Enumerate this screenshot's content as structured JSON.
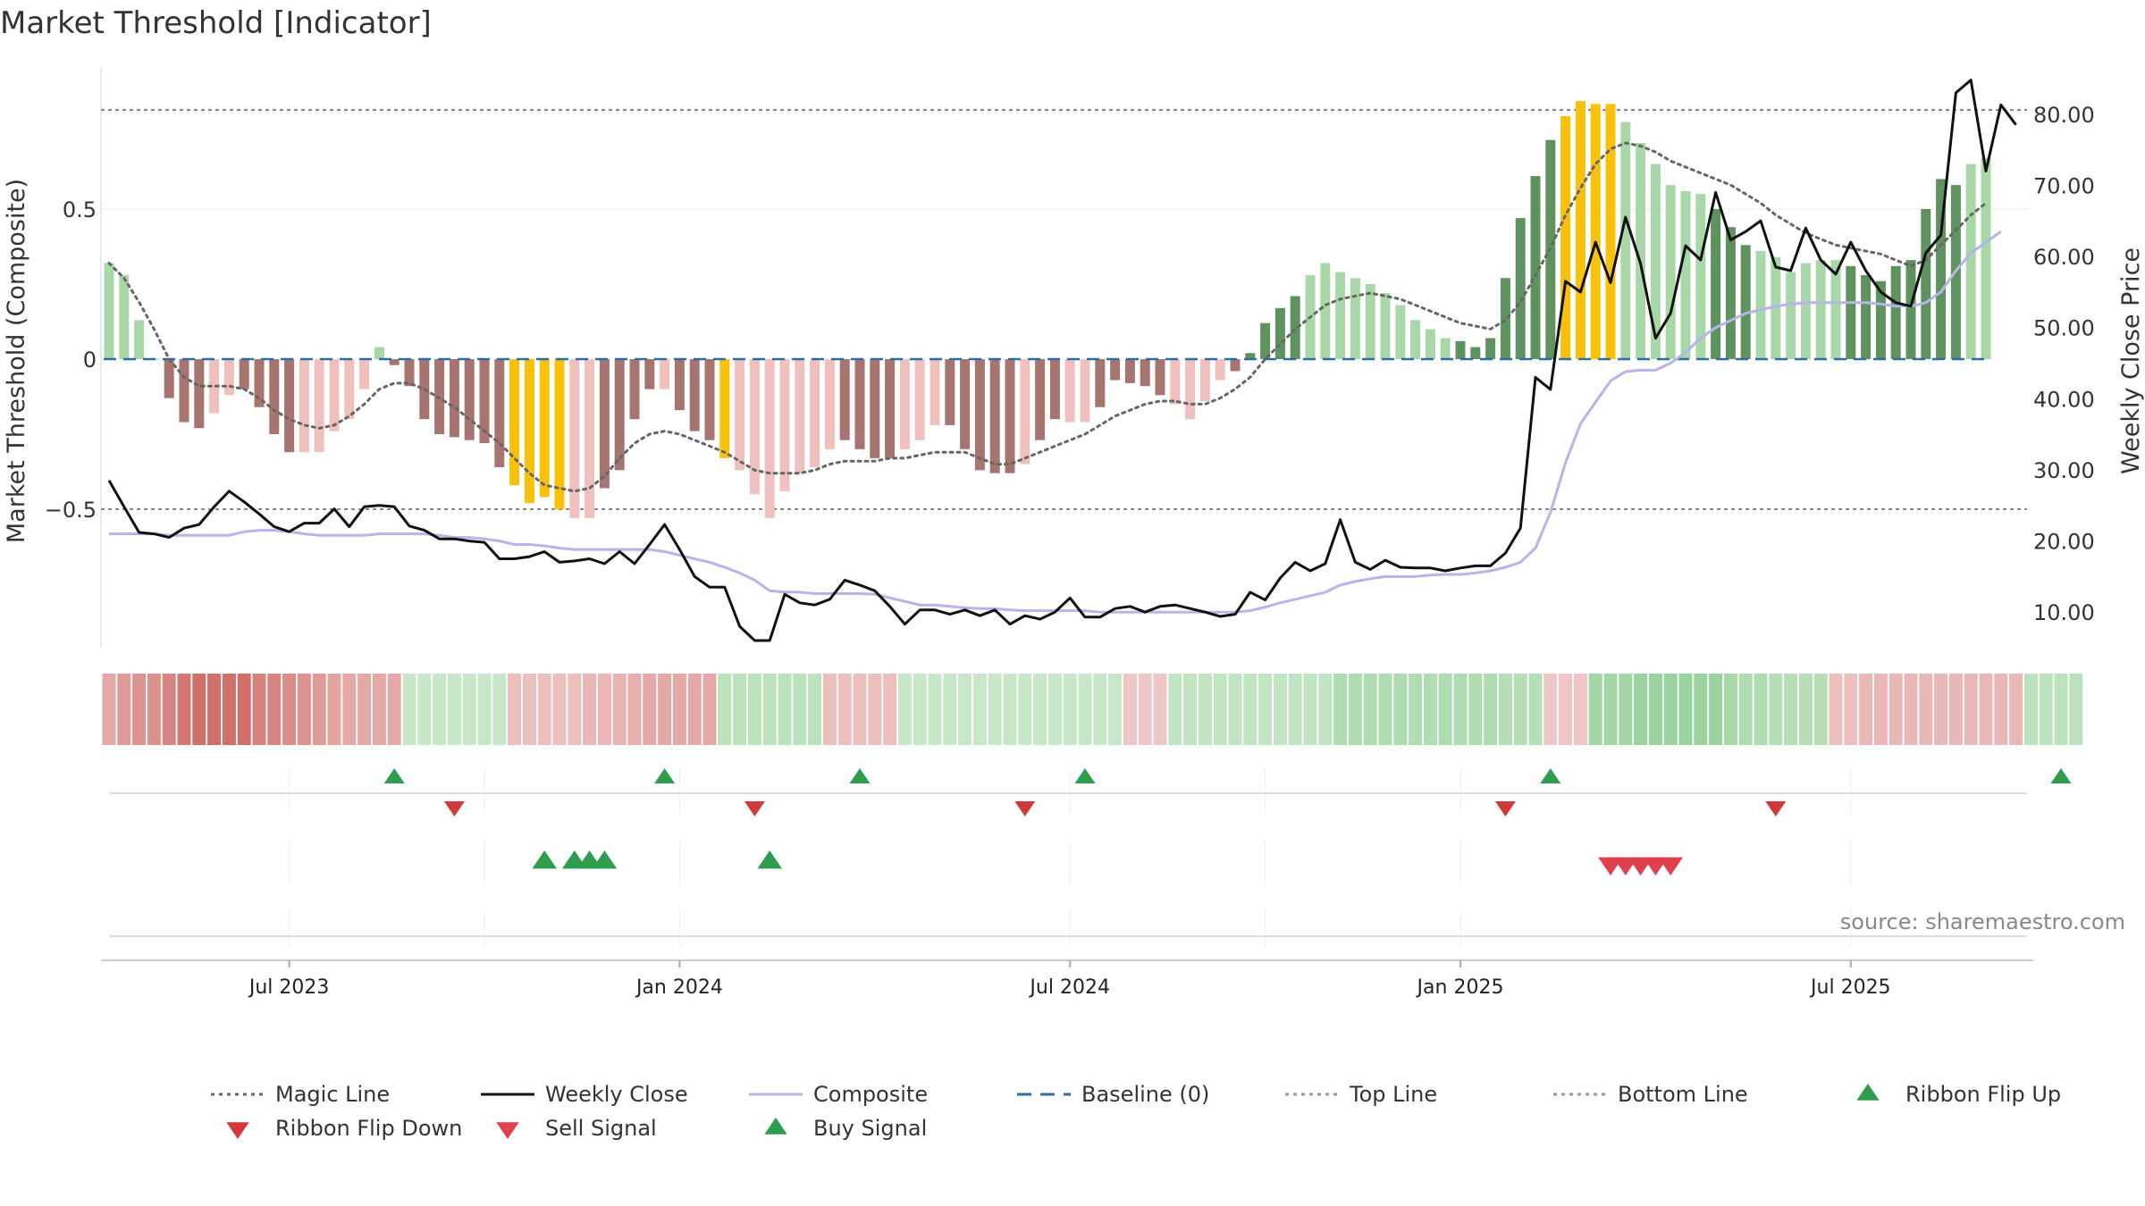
{
  "chart_data": {
    "type": "bar",
    "title": "Market Threshold [Indicator]",
    "ylabel_left": "Market Threshold (Composite)",
    "ylabel_right": "Weekly Close Price",
    "source": "source: sharemaestro.com",
    "ylim_left": [
      -0.95,
      0.95
    ],
    "ylim_right": [
      5,
      86
    ],
    "left_ticks": [
      {
        "v": 0.5,
        "label": "0.5"
      },
      {
        "v": 0,
        "label": "0"
      },
      {
        "v": -0.5,
        "label": "−0.5"
      }
    ],
    "right_ticks": [
      {
        "v": 80,
        "label": "80.00"
      },
      {
        "v": 70,
        "label": "70.00"
      },
      {
        "v": 60,
        "label": "60.00"
      },
      {
        "v": 50,
        "label": "50.00"
      },
      {
        "v": 40,
        "label": "40.00"
      },
      {
        "v": 30,
        "label": "30.00"
      },
      {
        "v": 20,
        "label": "20.00"
      },
      {
        "v": 10,
        "label": "10.00"
      }
    ],
    "x_ticks": [
      {
        "i": 12,
        "label": "Jul 2023"
      },
      {
        "i": 38,
        "label": "Jan 2024"
      },
      {
        "i": 64,
        "label": "Jul 2024"
      },
      {
        "i": 90,
        "label": "Jan 2025"
      },
      {
        "i": 116,
        "label": "Jul 2025"
      }
    ],
    "top_line": 0.83,
    "bottom_line": -0.5,
    "baseline": 0,
    "colors": {
      "strong_pos": "#5e9360",
      "weak_pos": "#a8d8a8",
      "strong_neg": "#a67570",
      "weak_neg": "#f0c0bc",
      "extreme": "#f7c10c",
      "weekly_close": "#111111",
      "composite": "#b8b3e8",
      "magic": "#666666",
      "baseline": "#2f6e9e",
      "threshold": "#777777",
      "buy": "#2e9e4e",
      "sell": "#d23a3a"
    },
    "composite_values": [
      0.32,
      0.28,
      0.13,
      0.0,
      -0.13,
      -0.21,
      -0.23,
      -0.18,
      -0.12,
      -0.1,
      -0.16,
      -0.25,
      -0.31,
      -0.31,
      -0.31,
      -0.24,
      -0.2,
      -0.1,
      0.04,
      -0.02,
      -0.09,
      -0.2,
      -0.25,
      -0.26,
      -0.27,
      -0.28,
      -0.36,
      -0.42,
      -0.48,
      -0.46,
      -0.5,
      -0.53,
      -0.53,
      -0.43,
      -0.37,
      -0.2,
      -0.1,
      -0.1,
      -0.17,
      -0.24,
      -0.27,
      -0.33,
      -0.37,
      -0.45,
      -0.53,
      -0.44,
      -0.38,
      -0.36,
      -0.3,
      -0.27,
      -0.3,
      -0.33,
      -0.33,
      -0.3,
      -0.27,
      -0.22,
      -0.22,
      -0.3,
      -0.37,
      -0.38,
      -0.38,
      -0.35,
      -0.27,
      -0.2,
      -0.21,
      -0.21,
      -0.16,
      -0.07,
      -0.08,
      -0.09,
      -0.12,
      -0.15,
      -0.2,
      -0.14,
      -0.07,
      -0.04,
      0.02,
      0.12,
      0.17,
      0.21,
      0.28,
      0.32,
      0.29,
      0.27,
      0.25,
      0.22,
      0.18,
      0.13,
      0.1,
      0.07,
      0.06,
      0.04,
      0.07,
      0.27,
      0.47,
      0.61,
      0.73,
      0.81,
      0.86,
      0.85,
      0.85,
      0.79,
      0.72,
      0.65,
      0.58,
      0.56,
      0.55,
      0.5,
      0.44,
      0.38,
      0.36,
      0.34,
      0.29,
      0.32,
      0.33,
      0.33,
      0.31,
      0.28,
      0.26,
      0.31,
      0.33,
      0.5,
      0.6,
      0.58,
      0.65,
      0.67
    ],
    "color_codes": "WWWWNNNWWNNNNWWWWWWNNNNNNNNYYYYWWNNNNWNNNYWWWWWWWNNNNWWWNNNNNWNNWWNNNNNWWWWSSSSSWWWWWWWWWWSSSSSSSYYYYWWWWWWSSSWWWWWWSSSSSSSS",
    "weekly_close": [
      28.5,
      24.8,
      21.2,
      21.0,
      20.5,
      21.8,
      22.3,
      24.8,
      27.0,
      25.5,
      23.8,
      22.0,
      21.3,
      22.5,
      22.5,
      24.5,
      22.0,
      24.8,
      25.0,
      24.8,
      22.1,
      21.5,
      20.3,
      20.3,
      20.0,
      19.8,
      17.5,
      17.5,
      17.8,
      18.5,
      17.0,
      17.2,
      17.5,
      16.8,
      18.5,
      16.8,
      19.5,
      22.3,
      18.8,
      15.0,
      13.5,
      13.5,
      8.0,
      6.0,
      6.0,
      12.5,
      11.3,
      11.0,
      11.8,
      14.5,
      13.8,
      13.0,
      10.8,
      8.3,
      10.3,
      10.3,
      9.7,
      10.3,
      9.5,
      10.3,
      8.3,
      9.5,
      9.0,
      10.0,
      12.0,
      9.3,
      9.3,
      10.5,
      10.8,
      10.0,
      10.8,
      11.0,
      10.5,
      10.0,
      9.4,
      9.7,
      12.8,
      11.7,
      14.8,
      17.0,
      15.8,
      16.8,
      23.0,
      17.0,
      16.0,
      17.3,
      16.3,
      16.2,
      16.2,
      15.8,
      16.2,
      16.5,
      16.5,
      18.3,
      21.8,
      43.0,
      41.3,
      56.5,
      55.0,
      62.0,
      56.3,
      65.5,
      59.0,
      48.5,
      52.0,
      61.5,
      59.5,
      69.0,
      62.3,
      63.5,
      65.0,
      58.5,
      58.0,
      64.0,
      59.5,
      57.5,
      62.0,
      58.0,
      55.0,
      53.5,
      53.0,
      60.5,
      63.0,
      83.0,
      84.8,
      72.0,
      81.3,
      78.5
    ],
    "composite_line": [
      21.0,
      21.0,
      21.0,
      21.0,
      20.8,
      20.8,
      20.8,
      20.8,
      20.8,
      21.3,
      21.5,
      21.5,
      21.3,
      21.0,
      20.8,
      20.8,
      20.8,
      20.8,
      21.0,
      21.0,
      21.0,
      21.0,
      20.8,
      20.5,
      20.5,
      20.3,
      20.0,
      19.5,
      19.5,
      19.3,
      19.0,
      18.8,
      18.8,
      18.8,
      18.8,
      18.8,
      18.8,
      18.5,
      18.0,
      17.5,
      17.0,
      16.3,
      15.5,
      14.5,
      13.0,
      12.8,
      12.8,
      12.6,
      12.6,
      12.6,
      12.6,
      12.5,
      12.0,
      11.5,
      11.0,
      11.0,
      10.8,
      10.6,
      10.5,
      10.5,
      10.3,
      10.2,
      10.2,
      10.2,
      10.2,
      10.2,
      10.0,
      10.0,
      10.0,
      10.0,
      10.0,
      10.0,
      10.0,
      10.0,
      10.0,
      10.0,
      10.2,
      10.7,
      11.3,
      11.8,
      12.3,
      12.8,
      13.8,
      14.3,
      14.7,
      15.0,
      15.0,
      15.0,
      15.2,
      15.3,
      15.3,
      15.5,
      15.8,
      16.3,
      17.0,
      19.0,
      24.0,
      31.0,
      36.5,
      39.5,
      42.5,
      43.8,
      44.0,
      44.0,
      45.0,
      46.5,
      48.5,
      50.0,
      51.0,
      52.0,
      52.5,
      53.0,
      53.3,
      53.5,
      53.5,
      53.5,
      53.5,
      53.5,
      53.3,
      53.0,
      53.0,
      53.5,
      55.0,
      58.0,
      60.5,
      62.0,
      63.5
    ],
    "magic_line": [
      0.32,
      0.27,
      0.19,
      0.1,
      0.0,
      -0.06,
      -0.09,
      -0.09,
      -0.09,
      -0.1,
      -0.13,
      -0.17,
      -0.2,
      -0.22,
      -0.23,
      -0.22,
      -0.19,
      -0.15,
      -0.1,
      -0.08,
      -0.08,
      -0.1,
      -0.13,
      -0.16,
      -0.2,
      -0.24,
      -0.28,
      -0.33,
      -0.38,
      -0.42,
      -0.43,
      -0.44,
      -0.43,
      -0.39,
      -0.33,
      -0.28,
      -0.25,
      -0.24,
      -0.25,
      -0.27,
      -0.29,
      -0.31,
      -0.34,
      -0.37,
      -0.38,
      -0.38,
      -0.38,
      -0.37,
      -0.35,
      -0.34,
      -0.34,
      -0.34,
      -0.33,
      -0.33,
      -0.32,
      -0.31,
      -0.31,
      -0.31,
      -0.33,
      -0.35,
      -0.35,
      -0.33,
      -0.31,
      -0.29,
      -0.27,
      -0.25,
      -0.22,
      -0.19,
      -0.17,
      -0.15,
      -0.14,
      -0.14,
      -0.15,
      -0.15,
      -0.13,
      -0.1,
      -0.06,
      0.0,
      0.05,
      0.1,
      0.14,
      0.18,
      0.2,
      0.21,
      0.22,
      0.21,
      0.2,
      0.18,
      0.16,
      0.14,
      0.12,
      0.11,
      0.1,
      0.13,
      0.19,
      0.28,
      0.37,
      0.48,
      0.57,
      0.65,
      0.7,
      0.72,
      0.71,
      0.69,
      0.66,
      0.64,
      0.62,
      0.6,
      0.58,
      0.55,
      0.52,
      0.48,
      0.45,
      0.42,
      0.4,
      0.38,
      0.37,
      0.36,
      0.35,
      0.33,
      0.31,
      0.33,
      0.38,
      0.43,
      0.48,
      0.52
    ],
    "ribbon": [
      -0.45,
      -0.55,
      -0.6,
      -0.62,
      -0.7,
      -0.8,
      -0.85,
      -0.85,
      -0.85,
      -0.85,
      -0.72,
      -0.7,
      -0.65,
      -0.6,
      -0.55,
      -0.48,
      -0.45,
      -0.45,
      -0.45,
      -0.45,
      0.3,
      0.3,
      0.3,
      0.3,
      0.3,
      0.3,
      0.3,
      -0.3,
      -0.3,
      -0.3,
      -0.3,
      -0.3,
      -0.35,
      -0.35,
      -0.38,
      -0.4,
      -0.45,
      -0.45,
      -0.45,
      -0.45,
      -0.45,
      0.4,
      0.4,
      0.4,
      0.4,
      0.4,
      0.4,
      0.4,
      -0.3,
      -0.3,
      -0.3,
      -0.3,
      -0.3,
      0.3,
      0.3,
      0.3,
      0.3,
      0.3,
      0.3,
      0.3,
      0.3,
      0.3,
      0.3,
      0.3,
      0.3,
      0.3,
      0.3,
      0.3,
      -0.25,
      -0.25,
      -0.25,
      0.35,
      0.35,
      0.35,
      0.35,
      0.35,
      0.35,
      0.35,
      0.35,
      0.35,
      0.35,
      0.35,
      0.5,
      0.5,
      0.5,
      0.5,
      0.5,
      0.5,
      0.5,
      0.5,
      0.5,
      0.5,
      0.5,
      0.45,
      0.45,
      0.45,
      -0.25,
      -0.25,
      -0.25,
      0.6,
      0.6,
      0.6,
      0.65,
      0.65,
      0.65,
      0.65,
      0.65,
      0.65,
      0.55,
      0.5,
      0.5,
      0.45,
      0.45,
      0.45,
      0.45,
      -0.3,
      -0.3,
      -0.35,
      -0.35,
      -0.35,
      -0.35,
      -0.35,
      -0.35,
      -0.35,
      -0.35,
      -0.35,
      -0.35,
      -0.35,
      0.4,
      0.4,
      0.4,
      0.4
    ],
    "ribbon_flip_up": [
      19,
      37,
      50,
      65,
      96,
      130
    ],
    "ribbon_flip_down": [
      23,
      43,
      61,
      93,
      111
    ],
    "buy_signals": [
      29,
      31,
      32,
      33,
      44
    ],
    "sell_signals": [
      100,
      101,
      102,
      103,
      104
    ],
    "legend": [
      {
        "label": "Magic Line",
        "kind": "dotted",
        "color": "#666666"
      },
      {
        "label": "Weekly Close",
        "kind": "solid",
        "color": "#111111"
      },
      {
        "label": "Composite",
        "kind": "solid",
        "color": "#b8b3e8"
      },
      {
        "label": "Baseline (0)",
        "kind": "dashed",
        "color": "#2f6e9e"
      },
      {
        "label": "Top Line",
        "kind": "dotted",
        "color": "#999999"
      },
      {
        "label": "Bottom Line",
        "kind": "dotted",
        "color": "#999999"
      },
      {
        "label": "Ribbon Flip Up",
        "kind": "tri-up",
        "color": "#2e9e4e"
      },
      {
        "label": "Ribbon Flip Down",
        "kind": "tri-down",
        "color": "#d23a3a"
      },
      {
        "label": "Sell Signal",
        "kind": "tri-down",
        "color": "#e0404e"
      },
      {
        "label": "Buy Signal",
        "kind": "tri-up",
        "color": "#2e9e4e"
      }
    ]
  }
}
